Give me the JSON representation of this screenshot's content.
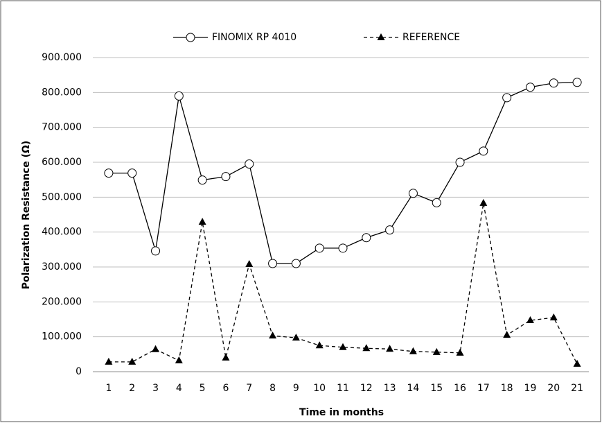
{
  "chart_data": {
    "type": "line",
    "x_label": "Time in months",
    "y_label": "Polarization Resistance (Ω)",
    "categories": [
      "1",
      "2",
      "3",
      "4",
      "5",
      "6",
      "7",
      "8",
      "9",
      "10",
      "11",
      "12",
      "13",
      "14",
      "15",
      "16",
      "17",
      "18",
      "19",
      "20",
      "21"
    ],
    "series": [
      {
        "name": "FINOMIX RP 4010",
        "color": "#000000",
        "marker": "circle",
        "dash": false,
        "values": [
          569000,
          569000,
          346000,
          790000,
          549000,
          559000,
          595000,
          310000,
          310000,
          354000,
          354000,
          384000,
          406000,
          511000,
          484000,
          600000,
          632000,
          785000,
          815000,
          827000,
          829000
        ]
      },
      {
        "name": "REFERENCE",
        "color": "#000000",
        "marker": "triangle",
        "dash": true,
        "values": [
          28000,
          28000,
          64000,
          32000,
          429000,
          40000,
          308000,
          103000,
          97000,
          75000,
          70000,
          67000,
          65000,
          58000,
          56000,
          54000,
          483000,
          105000,
          147000,
          155000,
          22000
        ]
      }
    ],
    "ylim": [
      0,
      900000
    ],
    "yticks": [
      0,
      {
        "value": 100000,
        "label": "100.000"
      },
      {
        "value": 200000,
        "label": "200.000"
      },
      {
        "value": 300000,
        "label": "300.000"
      },
      {
        "value": 400000,
        "label": "400.000"
      },
      {
        "value": 500000,
        "label": "500.000"
      },
      {
        "value": 600000,
        "label": "600.000"
      },
      {
        "value": 700000,
        "label": "700.000"
      },
      {
        "value": 800000,
        "label": "800.000"
      },
      {
        "value": 900000,
        "label": "900.000"
      }
    ],
    "grid": true,
    "legend": "top"
  }
}
